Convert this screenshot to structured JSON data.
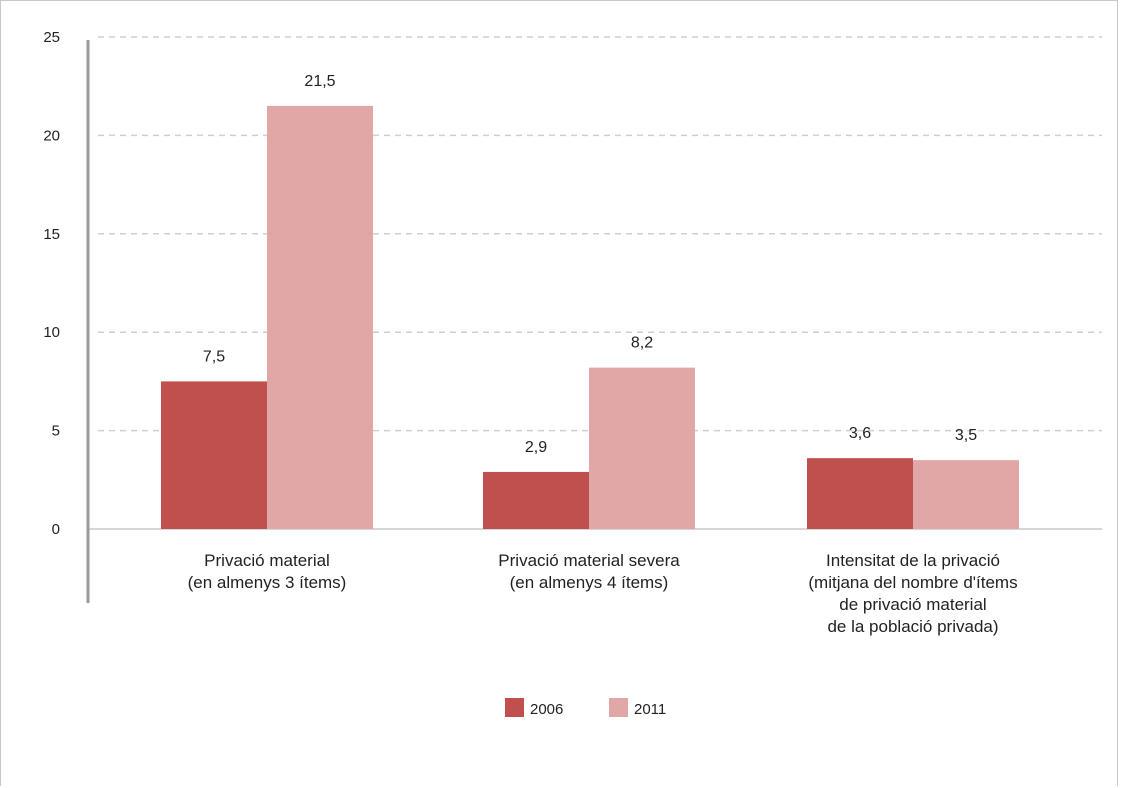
{
  "chart_data": {
    "type": "bar",
    "categories": [
      [
        "Privació material",
        "(en almenys 3 ítems)"
      ],
      [
        "Privació material severa",
        "(en almenys 4 ítems)"
      ],
      [
        "Intensitat de la privació",
        "(mitjana del nombre d'ítems",
        "de privació material",
        "de la població privada)"
      ]
    ],
    "series": [
      {
        "name": "2006",
        "color": "#c0504d",
        "values": [
          7.5,
          2.9,
          3.6
        ],
        "labels": [
          "7,5",
          "2,9",
          "3,6"
        ]
      },
      {
        "name": "2011",
        "color": "#e0a7a6",
        "values": [
          21.5,
          8.2,
          3.5
        ],
        "labels": [
          "21,5",
          "8,2",
          "3,5"
        ]
      }
    ],
    "ylim": [
      0,
      25
    ],
    "yticks": [
      0,
      5,
      10,
      15,
      20,
      25
    ],
    "grid": true,
    "legend_position": "bottom-center",
    "title": "",
    "xlabel": "",
    "ylabel": ""
  }
}
